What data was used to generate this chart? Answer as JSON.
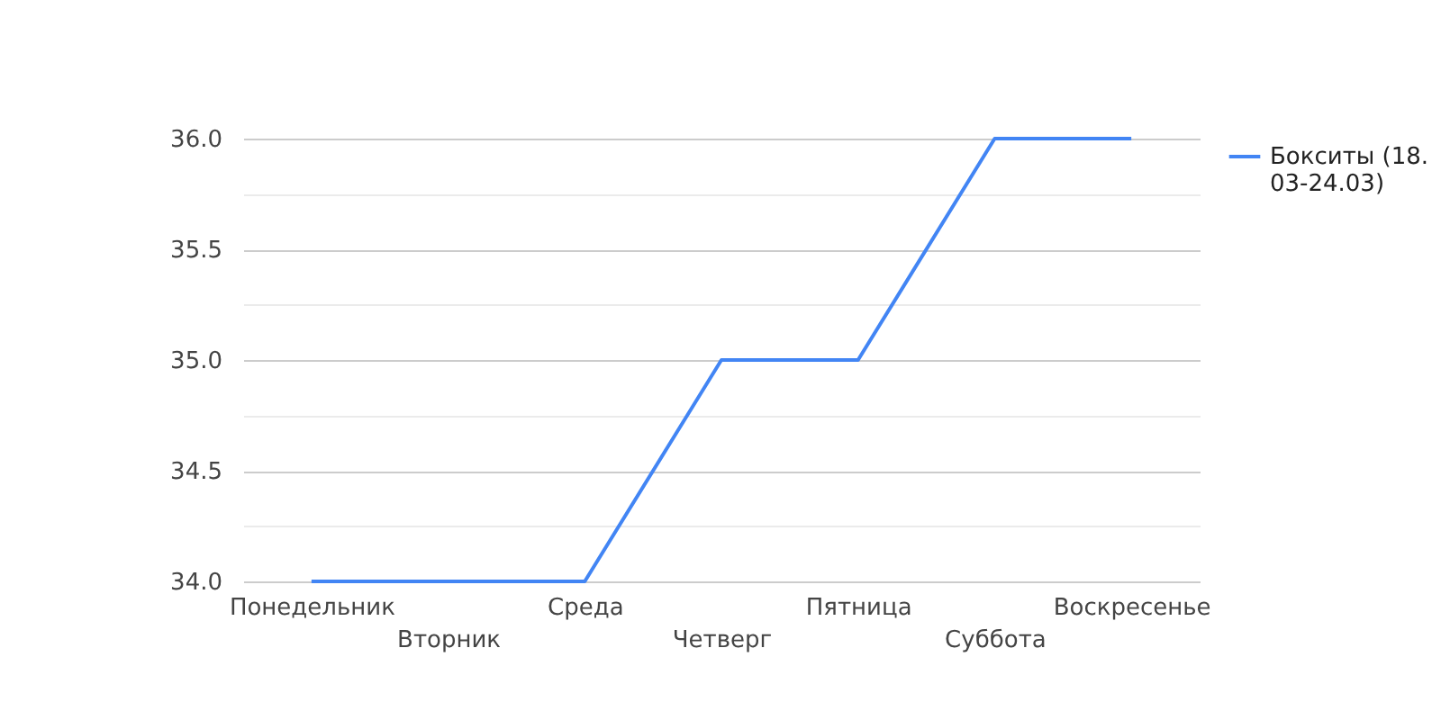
{
  "chart_data": {
    "type": "line",
    "categories": [
      "Понедельник",
      "Вторник",
      "Среда",
      "Четверг",
      "Пятница",
      "Суббота",
      "Воскресенье"
    ],
    "series": [
      {
        "name": "Бокситы (18.03-24.03)",
        "color": "#4285f4",
        "values": [
          34,
          34,
          34,
          35,
          35,
          36,
          36
        ]
      }
    ],
    "ylim": [
      34,
      36
    ],
    "yticks": [
      {
        "value": 34,
        "label": "34.0"
      },
      {
        "value": 34.25,
        "label": null
      },
      {
        "value": 34.5,
        "label": "34.5"
      },
      {
        "value": 34.75,
        "label": null
      },
      {
        "value": 35,
        "label": "35.0"
      },
      {
        "value": 35.25,
        "label": null
      },
      {
        "value": 35.5,
        "label": "35.5"
      },
      {
        "value": 35.75,
        "label": null
      },
      {
        "value": 36,
        "label": "36.0"
      }
    ],
    "grid": true,
    "legend": "right",
    "marker": "none",
    "line_style": "solid"
  }
}
